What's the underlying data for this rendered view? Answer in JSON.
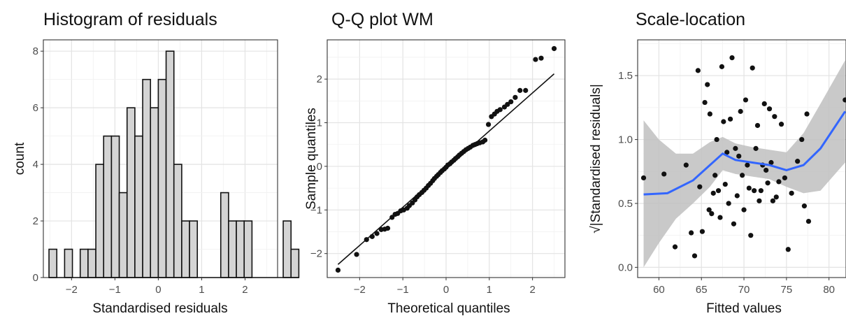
{
  "chart_data": [
    {
      "type": "bar",
      "title": "Histogram of residuals",
      "xlabel": "Standardised residuals",
      "ylabel": "count",
      "xlim": [
        -2.65,
        2.75
      ],
      "ylim": [
        0,
        8.4
      ],
      "xticks": [
        "-2",
        "-1",
        "0",
        "1",
        "2"
      ],
      "yticks": [
        "0",
        "2",
        "4",
        "6",
        "8"
      ],
      "bin_width": 0.18,
      "bin_start": -2.52,
      "values": [
        1,
        0,
        1,
        0,
        1,
        1,
        4,
        5,
        5,
        3,
        6,
        5,
        7,
        6,
        7,
        8,
        4,
        2,
        2,
        0,
        0,
        0,
        3,
        2,
        2,
        2,
        0,
        0,
        0,
        0,
        2,
        1
      ],
      "grid": true
    },
    {
      "type": "scatter",
      "title": "Q-Q plot WM",
      "xlabel": "Theoretical quantiles",
      "ylabel": "Sample quantiles",
      "xlim": [
        -2.75,
        2.75
      ],
      "ylim": [
        -2.55,
        2.9
      ],
      "xticks": [
        "-2",
        "-1",
        "0",
        "1",
        "2"
      ],
      "yticks": [
        "-2",
        "-1",
        "0",
        "1",
        "2"
      ],
      "reference_line": [
        [
          -2.5,
          -2.25
        ],
        [
          2.5,
          2.12
        ]
      ],
      "points": [
        [
          -2.5,
          -2.38
        ],
        [
          -2.07,
          -2.02
        ],
        [
          -1.84,
          -1.68
        ],
        [
          -1.71,
          -1.61
        ],
        [
          -1.6,
          -1.54
        ],
        [
          -1.5,
          -1.45
        ],
        [
          -1.42,
          -1.44
        ],
        [
          -1.35,
          -1.42
        ],
        [
          -1.25,
          -1.17
        ],
        [
          -1.18,
          -1.1
        ],
        [
          -1.12,
          -1.08
        ],
        [
          -1.05,
          -1.02
        ],
        [
          -0.98,
          -1.0
        ],
        [
          -0.9,
          -0.96
        ],
        [
          -0.85,
          -0.9
        ],
        [
          -0.78,
          -0.84
        ],
        [
          -0.72,
          -0.77
        ],
        [
          -0.67,
          -0.7
        ],
        [
          -0.62,
          -0.65
        ],
        [
          -0.56,
          -0.6
        ],
        [
          -0.51,
          -0.55
        ],
        [
          -0.46,
          -0.5
        ],
        [
          -0.41,
          -0.44
        ],
        [
          -0.36,
          -0.39
        ],
        [
          -0.31,
          -0.33
        ],
        [
          -0.27,
          -0.28
        ],
        [
          -0.22,
          -0.23
        ],
        [
          -0.18,
          -0.19
        ],
        [
          -0.13,
          -0.14
        ],
        [
          -0.09,
          -0.1
        ],
        [
          -0.04,
          -0.06
        ],
        [
          0.0,
          -0.02
        ],
        [
          0.04,
          0.03
        ],
        [
          0.09,
          0.06
        ],
        [
          0.13,
          0.1
        ],
        [
          0.18,
          0.14
        ],
        [
          0.22,
          0.18
        ],
        [
          0.27,
          0.22
        ],
        [
          0.31,
          0.26
        ],
        [
          0.36,
          0.3
        ],
        [
          0.41,
          0.34
        ],
        [
          0.46,
          0.38
        ],
        [
          0.51,
          0.41
        ],
        [
          0.56,
          0.44
        ],
        [
          0.62,
          0.48
        ],
        [
          0.67,
          0.5
        ],
        [
          0.72,
          0.52
        ],
        [
          0.78,
          0.54
        ],
        [
          0.85,
          0.56
        ],
        [
          0.9,
          0.6
        ],
        [
          0.98,
          0.96
        ],
        [
          1.05,
          1.14
        ],
        [
          1.12,
          1.2
        ],
        [
          1.18,
          1.26
        ],
        [
          1.25,
          1.3
        ],
        [
          1.35,
          1.36
        ],
        [
          1.42,
          1.42
        ],
        [
          1.5,
          1.48
        ],
        [
          1.6,
          1.58
        ],
        [
          1.71,
          1.74
        ],
        [
          1.84,
          1.74
        ],
        [
          2.07,
          2.45
        ],
        [
          2.2,
          2.48
        ],
        [
          2.5,
          2.7
        ]
      ],
      "grid": true
    },
    {
      "type": "scatter",
      "title": "Scale-location",
      "xlabel": "Fitted values",
      "ylabel": "√|Standardised residuals|",
      "xlim": [
        57.5,
        82.0
      ],
      "ylim": [
        -0.08,
        1.78
      ],
      "xticks": [
        "60",
        "65",
        "70",
        "75",
        "80"
      ],
      "yticks": [
        "0.0",
        "0.5",
        "1.0",
        "1.5"
      ],
      "points": [
        [
          58.2,
          0.7
        ],
        [
          60.6,
          0.73
        ],
        [
          61.9,
          0.16
        ],
        [
          63.2,
          0.8
        ],
        [
          63.8,
          0.27
        ],
        [
          64.2,
          0.09
        ],
        [
          64.6,
          1.54
        ],
        [
          64.8,
          0.63
        ],
        [
          65.1,
          0.28
        ],
        [
          65.4,
          1.29
        ],
        [
          65.7,
          1.43
        ],
        [
          65.9,
          0.45
        ],
        [
          66.0,
          1.2
        ],
        [
          66.2,
          0.42
        ],
        [
          66.4,
          0.58
        ],
        [
          66.6,
          0.72
        ],
        [
          66.8,
          1.0
        ],
        [
          67.0,
          0.6
        ],
        [
          67.2,
          0.39
        ],
        [
          67.4,
          1.57
        ],
        [
          67.6,
          1.14
        ],
        [
          67.8,
          0.65
        ],
        [
          68.0,
          0.9
        ],
        [
          68.2,
          0.5
        ],
        [
          68.4,
          1.16
        ],
        [
          68.6,
          1.64
        ],
        [
          68.8,
          0.34
        ],
        [
          69.0,
          0.93
        ],
        [
          69.2,
          0.56
        ],
        [
          69.4,
          0.87
        ],
        [
          69.6,
          1.22
        ],
        [
          69.8,
          0.72
        ],
        [
          70.0,
          0.45
        ],
        [
          70.2,
          1.31
        ],
        [
          70.4,
          0.8
        ],
        [
          70.6,
          0.62
        ],
        [
          70.8,
          0.25
        ],
        [
          71.0,
          1.56
        ],
        [
          71.2,
          0.6
        ],
        [
          71.4,
          0.93
        ],
        [
          71.6,
          1.11
        ],
        [
          71.8,
          0.52
        ],
        [
          72.0,
          0.6
        ],
        [
          72.2,
          0.8
        ],
        [
          72.4,
          1.28
        ],
        [
          72.6,
          0.76
        ],
        [
          72.8,
          0.66
        ],
        [
          73.0,
          1.24
        ],
        [
          73.2,
          0.82
        ],
        [
          73.4,
          0.52
        ],
        [
          73.6,
          1.18
        ],
        [
          73.8,
          0.55
        ],
        [
          74.1,
          0.67
        ],
        [
          74.4,
          1.12
        ],
        [
          74.8,
          0.7
        ],
        [
          75.2,
          0.14
        ],
        [
          75.6,
          0.58
        ],
        [
          76.3,
          0.83
        ],
        [
          76.8,
          1.0
        ],
        [
          77.1,
          0.48
        ],
        [
          77.4,
          1.2
        ],
        [
          77.6,
          0.36
        ],
        [
          81.9,
          1.31
        ]
      ],
      "smooth_line": [
        [
          58.2,
          0.57
        ],
        [
          61,
          0.58
        ],
        [
          64,
          0.68
        ],
        [
          66,
          0.8
        ],
        [
          67.5,
          0.89
        ],
        [
          69,
          0.84
        ],
        [
          71,
          0.82
        ],
        [
          73,
          0.8
        ],
        [
          75,
          0.76
        ],
        [
          77,
          0.8
        ],
        [
          79,
          0.93
        ],
        [
          81.9,
          1.22
        ]
      ],
      "smooth_band_upper": [
        [
          58.2,
          1.15
        ],
        [
          60,
          1.0
        ],
        [
          62,
          0.89
        ],
        [
          64,
          0.89
        ],
        [
          66,
          0.98
        ],
        [
          67.5,
          1.02
        ],
        [
          69,
          0.97
        ],
        [
          71,
          0.94
        ],
        [
          73,
          0.92
        ],
        [
          75,
          0.9
        ],
        [
          77,
          1.05
        ],
        [
          79,
          1.28
        ],
        [
          81.9,
          1.62
        ]
      ],
      "smooth_band_lower": [
        [
          58.2,
          0.0
        ],
        [
          60,
          0.19
        ],
        [
          62,
          0.38
        ],
        [
          64,
          0.5
        ],
        [
          66,
          0.63
        ],
        [
          67.5,
          0.76
        ],
        [
          69,
          0.73
        ],
        [
          71,
          0.71
        ],
        [
          73,
          0.69
        ],
        [
          75,
          0.63
        ],
        [
          77,
          0.58
        ],
        [
          79,
          0.6
        ],
        [
          81.9,
          0.82
        ]
      ],
      "colors": {
        "smooth": "#3366ff",
        "band": "#bfbfbf"
      },
      "grid": true
    }
  ]
}
